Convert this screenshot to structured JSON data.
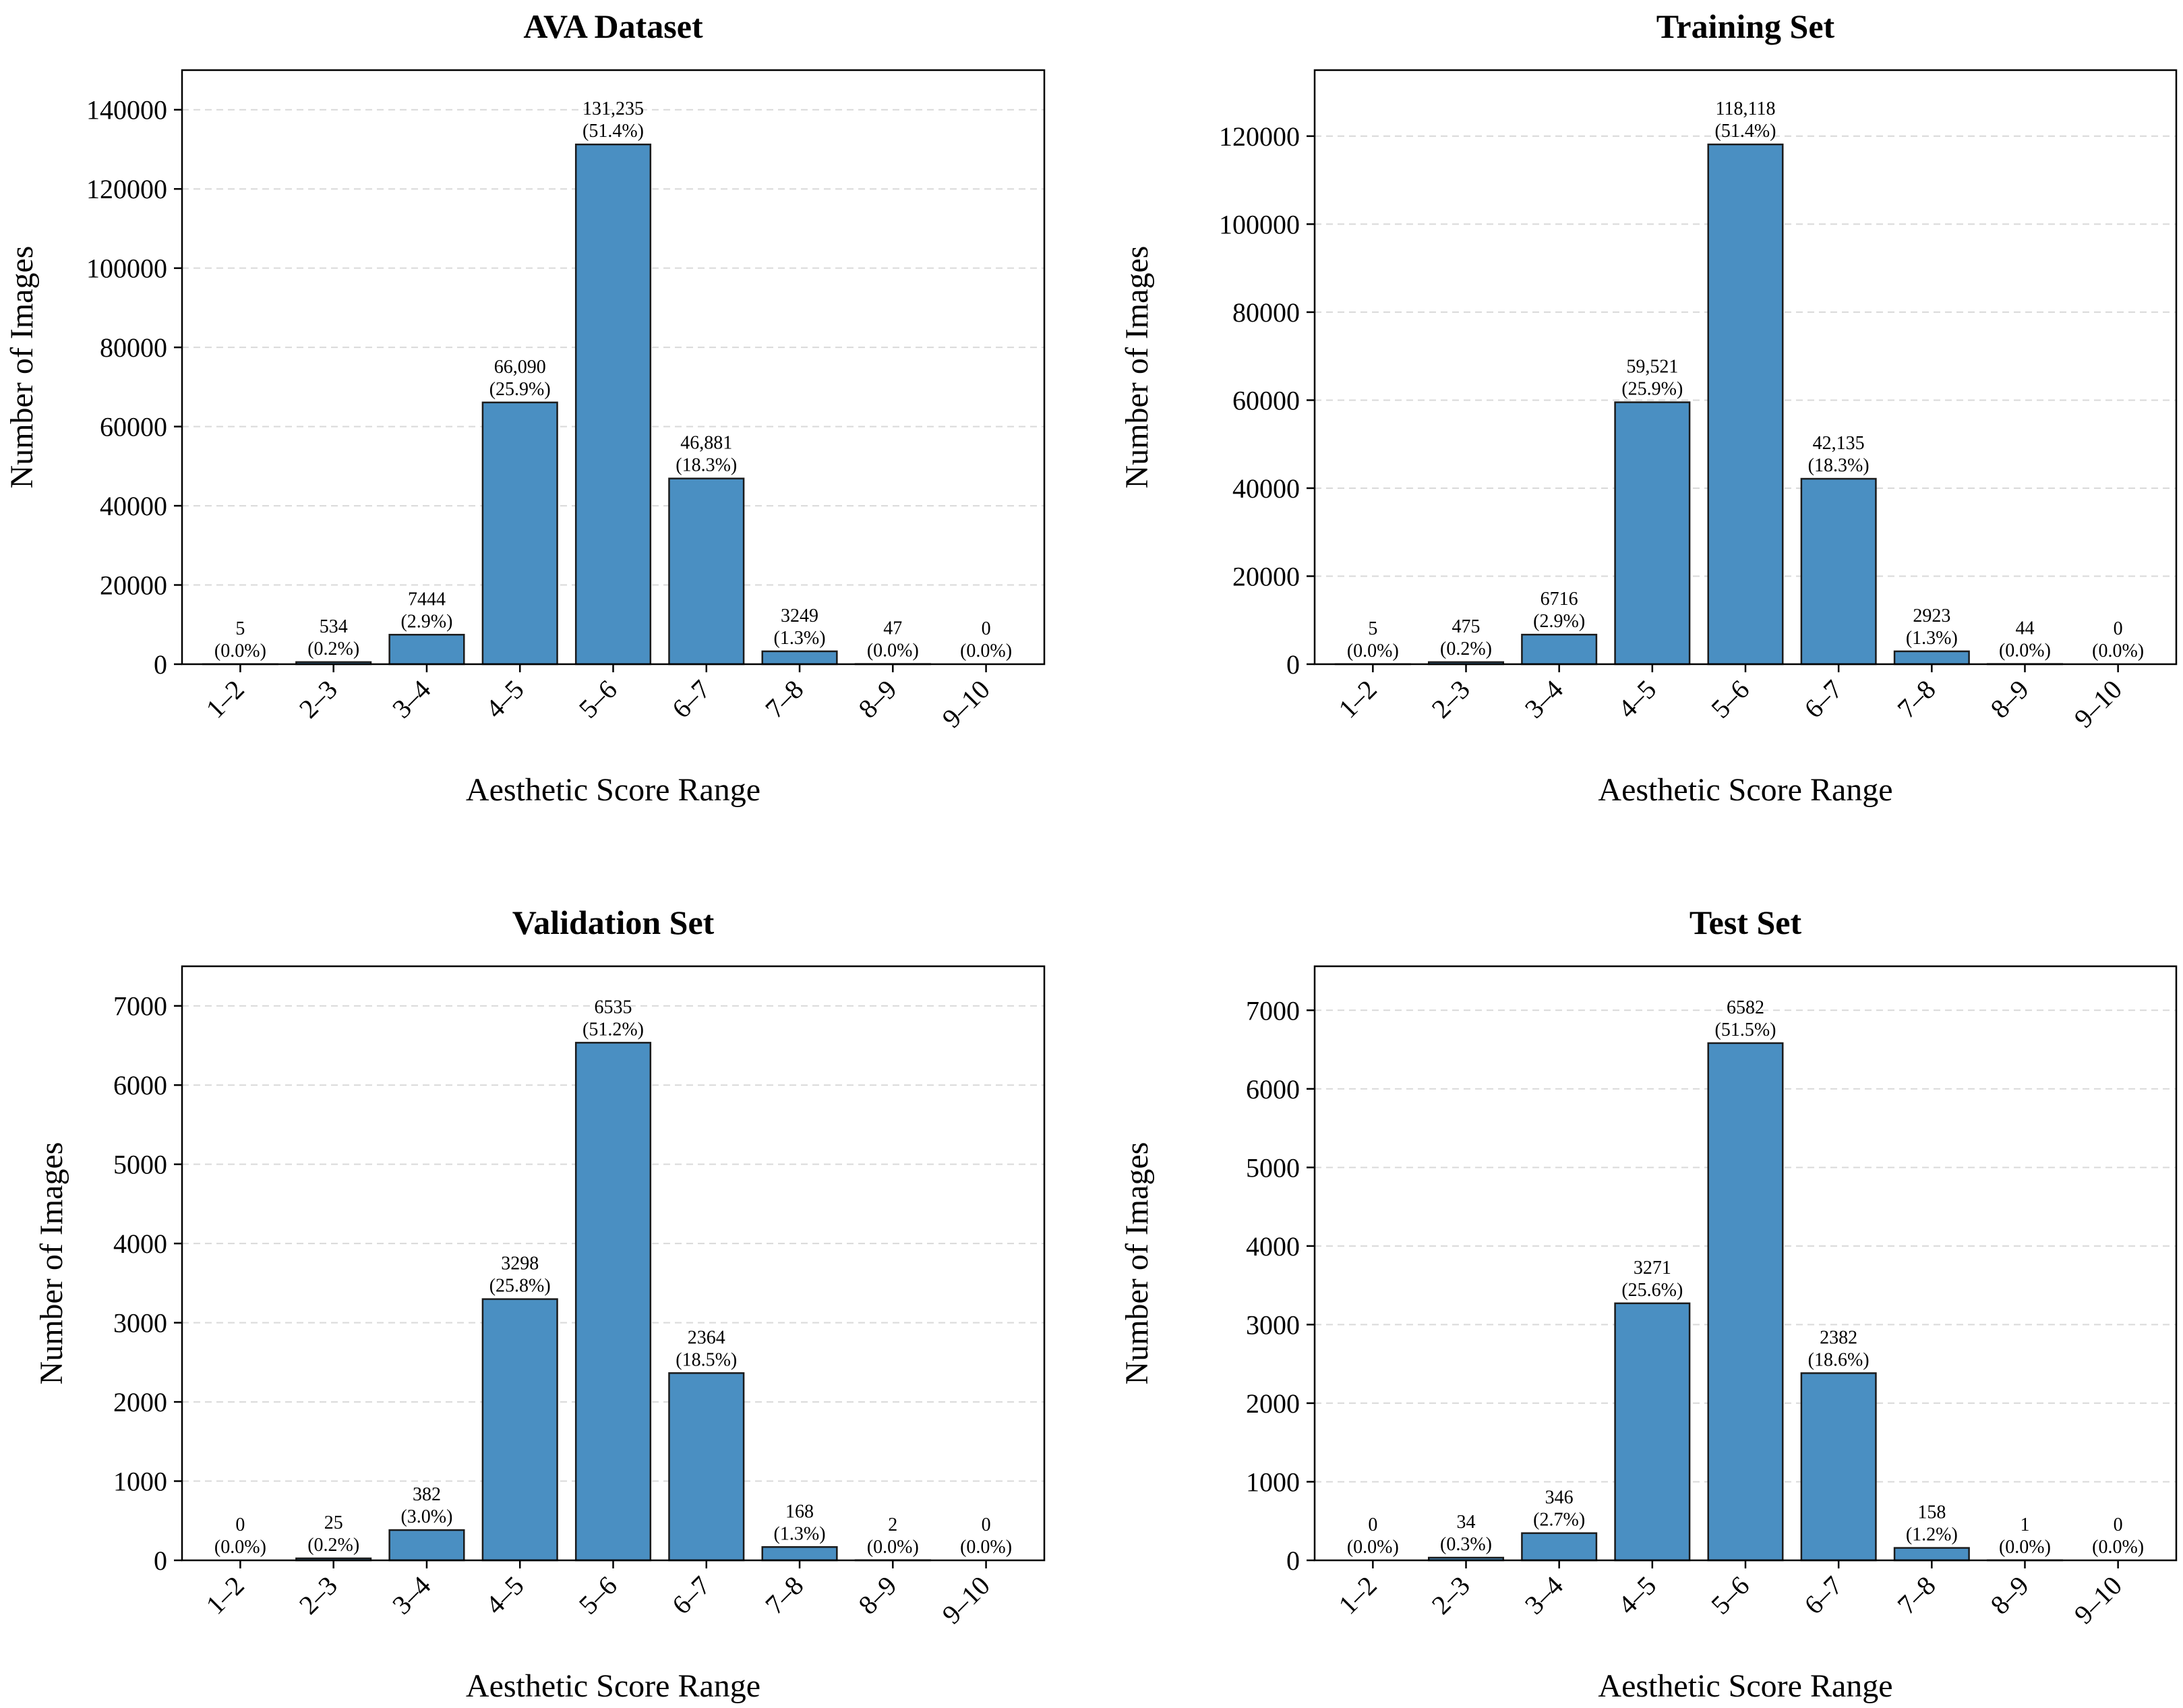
{
  "colors": {
    "bar_fill": "#4a8fc2",
    "bar_edge": "#1b1b1b",
    "grid": "#d9d9d9",
    "axis": "#000000"
  },
  "chart_data": [
    {
      "type": "bar",
      "title": "AVA Dataset",
      "xlabel": "Aesthetic Score Range",
      "ylabel": "Number of Images",
      "categories": [
        "1–2",
        "2–3",
        "3–4",
        "4–5",
        "5–6",
        "6–7",
        "7–8",
        "8–9",
        "9–10"
      ],
      "values": [
        5,
        534,
        7444,
        66090,
        131235,
        46881,
        3249,
        47,
        0
      ],
      "value_labels": [
        "5",
        "534",
        "7444",
        "66,090",
        "131,235",
        "46,881",
        "3249",
        "47",
        "0"
      ],
      "percent_labels": [
        "(0.0%)",
        "(0.2%)",
        "(2.9%)",
        "(25.9%)",
        "(51.4%)",
        "(18.3%)",
        "(1.3%)",
        "(0.0%)",
        "(0.0%)"
      ],
      "yticks": [
        0,
        20000,
        40000,
        60000,
        80000,
        100000,
        120000,
        140000
      ],
      "ylim": [
        0,
        150000
      ],
      "grid": true
    },
    {
      "type": "bar",
      "title": "Training Set",
      "xlabel": "Aesthetic Score Range",
      "ylabel": "Number of Images",
      "categories": [
        "1–2",
        "2–3",
        "3–4",
        "4–5",
        "5–6",
        "6–7",
        "7–8",
        "8–9",
        "9–10"
      ],
      "values": [
        5,
        475,
        6716,
        59521,
        118118,
        42135,
        2923,
        44,
        0
      ],
      "value_labels": [
        "5",
        "475",
        "6716",
        "59,521",
        "118,118",
        "42,135",
        "2923",
        "44",
        "0"
      ],
      "percent_labels": [
        "(0.0%)",
        "(0.2%)",
        "(2.9%)",
        "(25.9%)",
        "(51.4%)",
        "(18.3%)",
        "(1.3%)",
        "(0.0%)",
        "(0.0%)"
      ],
      "yticks": [
        0,
        20000,
        40000,
        60000,
        80000,
        100000,
        120000
      ],
      "ylim": [
        0,
        135000
      ],
      "grid": true
    },
    {
      "type": "bar",
      "title": "Validation Set",
      "xlabel": "Aesthetic Score Range",
      "ylabel": "Number of Images",
      "categories": [
        "1–2",
        "2–3",
        "3–4",
        "4–5",
        "5–6",
        "6–7",
        "7–8",
        "8–9",
        "9–10"
      ],
      "values": [
        0,
        25,
        382,
        3298,
        6535,
        2364,
        168,
        2,
        0
      ],
      "value_labels": [
        "0",
        "25",
        "382",
        "3298",
        "6535",
        "2364",
        "168",
        "2",
        "0"
      ],
      "percent_labels": [
        "(0.0%)",
        "(0.2%)",
        "(3.0%)",
        "(25.8%)",
        "(51.2%)",
        "(18.5%)",
        "(1.3%)",
        "(0.0%)",
        "(0.0%)"
      ],
      "yticks": [
        0,
        1000,
        2000,
        3000,
        4000,
        5000,
        6000,
        7000
      ],
      "ylim": [
        0,
        7500
      ],
      "grid": true
    },
    {
      "type": "bar",
      "title": "Test Set",
      "xlabel": "Aesthetic Score Range",
      "ylabel": "Number of Images",
      "categories": [
        "1–2",
        "2–3",
        "3–4",
        "4–5",
        "5–6",
        "6–7",
        "7–8",
        "8–9",
        "9–10"
      ],
      "values": [
        0,
        34,
        346,
        3271,
        6582,
        2382,
        158,
        1,
        0
      ],
      "value_labels": [
        "0",
        "34",
        "346",
        "3271",
        "6582",
        "2382",
        "158",
        "1",
        "0"
      ],
      "percent_labels": [
        "(0.0%)",
        "(0.3%)",
        "(2.7%)",
        "(25.6%)",
        "(51.5%)",
        "(18.6%)",
        "(1.2%)",
        "(0.0%)",
        "(0.0%)"
      ],
      "yticks": [
        0,
        1000,
        2000,
        3000,
        4000,
        5000,
        6000,
        7000
      ],
      "ylim": [
        0,
        7560
      ],
      "grid": true
    }
  ]
}
